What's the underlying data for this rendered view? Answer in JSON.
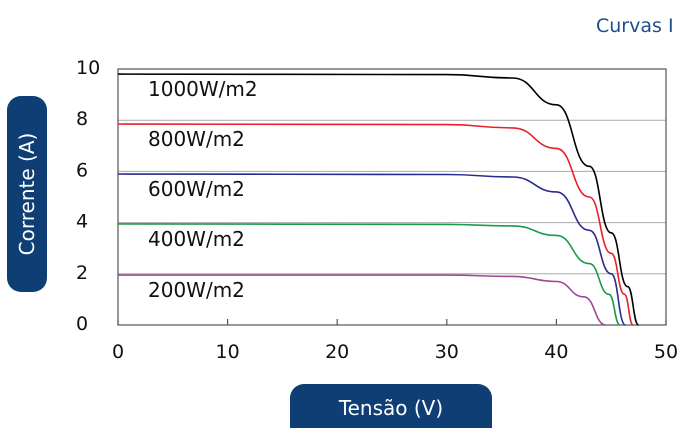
{
  "title": "Curvas I",
  "chart_data": {
    "type": "line",
    "xlabel": "Tensão (V)",
    "ylabel": "Corrente (A)",
    "xlim": [
      0,
      50
    ],
    "ylim": [
      0,
      10
    ],
    "xticks": [
      "0",
      "10",
      "20",
      "30",
      "40",
      "50"
    ],
    "yticks": [
      "0",
      "2",
      "4",
      "6",
      "8",
      "10"
    ],
    "grid": "horizontal",
    "series": [
      {
        "name": "1000W/m2",
        "color": "#000000",
        "isc": 9.8,
        "voc": 47.5,
        "points": [
          [
            0,
            9.8
          ],
          [
            30,
            9.78
          ],
          [
            36,
            9.65
          ],
          [
            40,
            8.6
          ],
          [
            43,
            6.2
          ],
          [
            45,
            3.6
          ],
          [
            46.5,
            1.5
          ],
          [
            47.5,
            0
          ]
        ]
      },
      {
        "name": "800W/m2",
        "color": "#e8202a",
        "isc": 7.85,
        "voc": 47.0,
        "points": [
          [
            0,
            7.85
          ],
          [
            30,
            7.83
          ],
          [
            36,
            7.7
          ],
          [
            40,
            6.9
          ],
          [
            43,
            5.0
          ],
          [
            45,
            2.8
          ],
          [
            46.2,
            1.2
          ],
          [
            47.0,
            0
          ]
        ]
      },
      {
        "name": "600W/m2",
        "color": "#2a2a8f",
        "isc": 5.9,
        "voc": 46.3,
        "points": [
          [
            0,
            5.9
          ],
          [
            30,
            5.88
          ],
          [
            36,
            5.78
          ],
          [
            40,
            5.2
          ],
          [
            43,
            3.7
          ],
          [
            45,
            2.0
          ],
          [
            46.3,
            0
          ]
        ]
      },
      {
        "name": "400W/m2",
        "color": "#1a9a4a",
        "isc": 3.95,
        "voc": 45.8,
        "points": [
          [
            0,
            3.95
          ],
          [
            30,
            3.93
          ],
          [
            36,
            3.87
          ],
          [
            40,
            3.5
          ],
          [
            43,
            2.4
          ],
          [
            44.8,
            1.2
          ],
          [
            45.8,
            0
          ]
        ]
      },
      {
        "name": "200W/m2",
        "color": "#a0488f",
        "isc": 1.95,
        "voc": 44.5,
        "points": [
          [
            0,
            1.95
          ],
          [
            30,
            1.95
          ],
          [
            36,
            1.9
          ],
          [
            40,
            1.7
          ],
          [
            42.5,
            1.1
          ],
          [
            44.5,
            0
          ]
        ]
      }
    ]
  }
}
